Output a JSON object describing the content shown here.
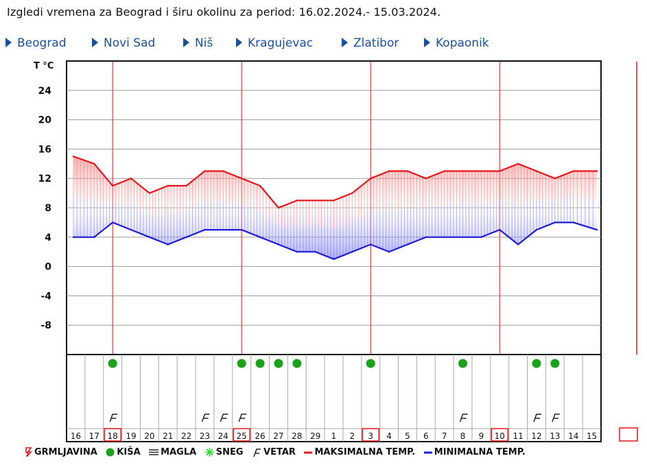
{
  "page": {
    "title": "Izgledi vremena za Beograd i širu okolinu za period: 16.02.2024.- 15.03.2024."
  },
  "nav": {
    "items": [
      {
        "label": "Beograd"
      },
      {
        "label": "Novi Sad"
      },
      {
        "label": "Niš"
      },
      {
        "label": "Kragujevac"
      },
      {
        "label": "Zlatibor"
      },
      {
        "label": "Kopaonik"
      }
    ],
    "color": "#1a4fa0"
  },
  "chart_data": {
    "type": "line",
    "title": "",
    "ylabel": "T °C",
    "ylim": [
      -12,
      28
    ],
    "yticks": [
      24,
      20,
      16,
      12,
      8,
      4,
      0,
      -4,
      -8
    ],
    "grid": true,
    "categories": [
      "16",
      "17",
      "18",
      "19",
      "20",
      "21",
      "22",
      "23",
      "24",
      "25",
      "26",
      "27",
      "28",
      "29",
      "1",
      "2",
      "3",
      "4",
      "5",
      "6",
      "7",
      "8",
      "9",
      "10",
      "11",
      "12",
      "13",
      "14",
      "15"
    ],
    "series": [
      {
        "name": "MAKSIMALNA TEMP.",
        "color": "#e8141c",
        "values": [
          15,
          14,
          11,
          12,
          10,
          11,
          11,
          13,
          13,
          12,
          11,
          8,
          9,
          9,
          9,
          10,
          12,
          13,
          13,
          12,
          13,
          13,
          13,
          13,
          14,
          13,
          12,
          13,
          13
        ]
      },
      {
        "name": "MINIMALNA TEMP.",
        "color": "#1c1cd8",
        "values": [
          4,
          4,
          6,
          5,
          4,
          3,
          4,
          5,
          5,
          5,
          4,
          3,
          2,
          2,
          1,
          2,
          3,
          2,
          3,
          4,
          4,
          4,
          4,
          5,
          3,
          5,
          6,
          6,
          5
        ]
      }
    ],
    "week_markers": [
      "18",
      "25",
      "3",
      "10"
    ],
    "events": {
      "rain": [
        "18",
        "25",
        "26",
        "27",
        "28",
        "3",
        "8",
        "12",
        "13"
      ],
      "wind": [
        "18",
        "23",
        "24",
        "25",
        "8",
        "12",
        "13"
      ]
    },
    "legend": {
      "items": [
        {
          "key": "thunder",
          "label": "GRMLJAVINA",
          "color": "#e8141c"
        },
        {
          "key": "rain",
          "label": "KIŠA",
          "color": "#1aa31a"
        },
        {
          "key": "fog",
          "label": "MAGLA",
          "color": "#333333"
        },
        {
          "key": "snow",
          "label": "SNEG",
          "color": "#22dd22"
        },
        {
          "key": "wind",
          "label": "VETAR",
          "color": "#222222"
        },
        {
          "key": "max",
          "label": "MAKSIMALNA TEMP.",
          "color": "#e8141c"
        },
        {
          "key": "min",
          "label": "MINIMALNA TEMP.",
          "color": "#1c1cd8"
        }
      ],
      "placement": "bottom"
    }
  }
}
